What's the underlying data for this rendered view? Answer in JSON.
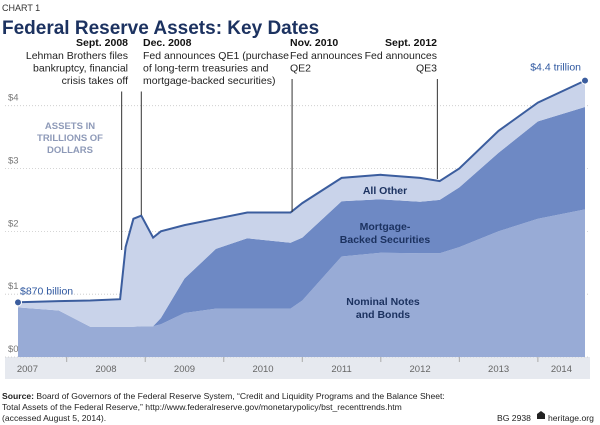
{
  "chart_label": "CHART 1",
  "chart_data": {
    "type": "stacked-area",
    "title": "Federal Reserve Assets: Key Dates",
    "y_label": [
      "ASSETS IN",
      "TRILLIONS OF",
      "DOLLARS"
    ],
    "x": [
      2007.38,
      2007.9,
      2008.3,
      2008.68,
      2008.75,
      2008.85,
      2008.95,
      2009.1,
      2009.2,
      2009.5,
      2009.9,
      2010.3,
      2010.85,
      2011.0,
      2011.5,
      2012.0,
      2012.5,
      2012.75,
      2013.0,
      2013.5,
      2014.0,
      2014.6
    ],
    "series": [
      {
        "name": [
          "Nominal Notes",
          "and Bonds"
        ],
        "color": "#98abd6",
        "values": [
          0.79,
          0.74,
          0.48,
          0.48,
          0.48,
          0.48,
          0.49,
          0.49,
          0.52,
          0.7,
          0.77,
          0.77,
          0.77,
          0.9,
          1.6,
          1.66,
          1.65,
          1.65,
          1.75,
          2.0,
          2.2,
          2.35
        ]
      },
      {
        "name": [
          "Mortgage-",
          "Backed Securities"
        ],
        "color": "#6e89c4",
        "values": [
          0,
          0,
          0,
          0,
          0,
          0,
          0,
          0,
          0.1,
          0.55,
          0.95,
          1.12,
          1.05,
          1.0,
          0.88,
          0.85,
          0.82,
          0.85,
          0.95,
          1.25,
          1.55,
          1.63
        ]
      },
      {
        "name": [
          "All Other"
        ],
        "color": "#c9d3ea",
        "values": [
          0.08,
          0.15,
          0.42,
          0.44,
          1.27,
          1.72,
          1.76,
          1.41,
          1.38,
          0.85,
          0.48,
          0.41,
          0.48,
          0.55,
          0.37,
          0.39,
          0.38,
          0.3,
          0.3,
          0.35,
          0.3,
          0.42
        ]
      }
    ],
    "line_color": "#3b5d9e",
    "xlim": [
      2007.38,
      2014.6
    ],
    "ylim": [
      0,
      4.6
    ],
    "xticks": [
      {
        "value": 2007.5,
        "label": "2007"
      },
      {
        "value": 2008.5,
        "label": "2008"
      },
      {
        "value": 2009.5,
        "label": "2009"
      },
      {
        "value": 2010.5,
        "label": "2010"
      },
      {
        "value": 2011.5,
        "label": "2011"
      },
      {
        "value": 2012.5,
        "label": "2012"
      },
      {
        "value": 2013.5,
        "label": "2013"
      },
      {
        "value": 2014.3,
        "label": "2014"
      }
    ],
    "yticks": [
      {
        "value": 0,
        "label": "$0"
      },
      {
        "value": 1,
        "label": "$1"
      },
      {
        "value": 2,
        "label": "$2"
      },
      {
        "value": 3,
        "label": "$3"
      },
      {
        "value": 4,
        "label": "$4"
      }
    ],
    "grid": true,
    "callouts": [
      {
        "x": 2007.38,
        "value": 0.87,
        "label": "$870 billion"
      },
      {
        "x": 2014.6,
        "value": 4.4,
        "label": "$4.4 trillion"
      }
    ],
    "annotations": [
      {
        "x": 2008.7,
        "date": "Sept. 2008",
        "text": [
          "Lehman Brothers files",
          "bankruptcy, financial",
          "crisis takes off"
        ]
      },
      {
        "x": 2008.95,
        "date": "Dec. 2008",
        "text": [
          "Fed announces QE1 (purchase",
          "of long-term treasuries and",
          "mortgage-backed securities)"
        ]
      },
      {
        "x": 2010.87,
        "date": "Nov. 2010",
        "text": [
          "Fed announces",
          "QE2"
        ]
      },
      {
        "x": 2012.72,
        "date": "Sept. 2012",
        "text": [
          "Fed announces",
          "QE3"
        ]
      }
    ]
  },
  "source": {
    "label": "Source:",
    "lines": [
      " Board of Governors of the Federal Reserve System, “Credit and Liquidity Programs and the Balance Sheet:",
      "Total Assets of the Federal Reserve,” http://www.federalreserve.gov/monetarypolicy/bst_recenttrends.htm",
      "(accessed August 5, 2014)."
    ]
  },
  "report_id": "BG 2938",
  "site": "heritage.org"
}
